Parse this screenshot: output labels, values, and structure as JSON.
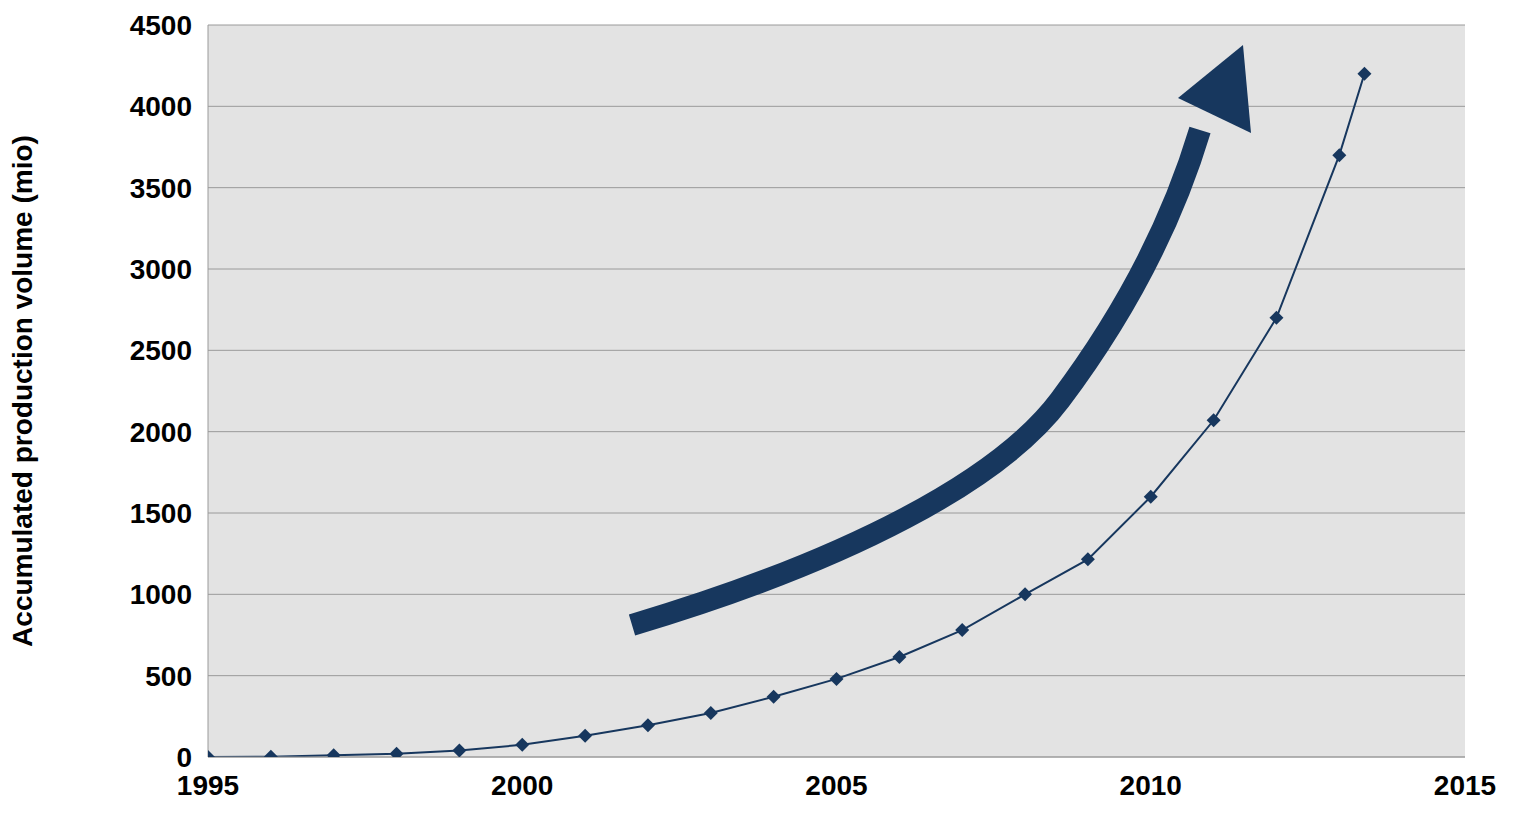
{
  "chart_data": {
    "type": "line",
    "y_label": "Accumulated production volume (mio)",
    "x": [
      1995,
      1996,
      1997,
      1998,
      1999,
      2000,
      2001,
      2002,
      2003,
      2004,
      2005,
      2006,
      2007,
      2008,
      2009,
      2010,
      2011,
      2012,
      2013,
      2013.4
    ],
    "values": [
      0,
      2,
      10,
      20,
      40,
      75,
      130,
      195,
      270,
      370,
      480,
      615,
      780,
      1000,
      1215,
      1600,
      2070,
      2700,
      3700,
      4200
    ],
    "color": "#17375e",
    "marker": "diamond",
    "line_style": "solid",
    "xlim": [
      1995,
      2015
    ],
    "xticks": [
      1995,
      2000,
      2005,
      2010,
      2015
    ],
    "ylim": [
      0,
      4500
    ],
    "yticks": [
      0,
      500,
      1000,
      1500,
      2000,
      2500,
      3000,
      3500,
      4000,
      4500
    ],
    "grid": true
  }
}
